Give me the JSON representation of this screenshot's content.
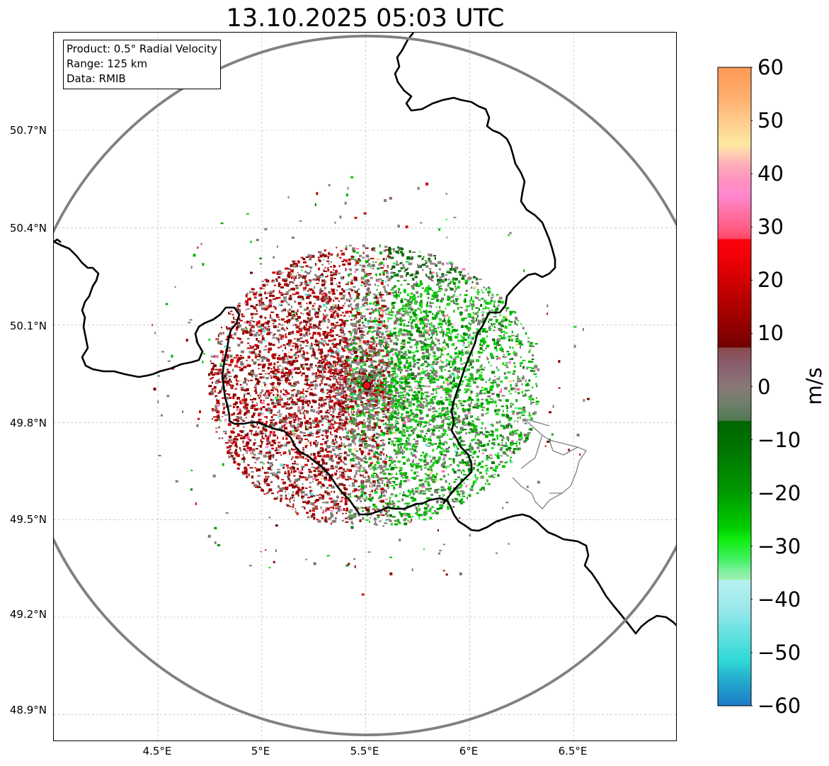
{
  "title": "13.10.2025 05:03 UTC",
  "info": {
    "product": "Product: 0.5° Radial Velocity",
    "range": "Range: 125 km",
    "data": "Data: RMIB"
  },
  "axes": {
    "lat_ticks": [
      "50.7°N",
      "50.4°N",
      "50.1°N",
      "49.8°N",
      "49.5°N",
      "49.2°N",
      "48.9°N"
    ],
    "lon_ticks": [
      "4.5°E",
      "5°E",
      "5.5°E",
      "6°E",
      "6.5°E"
    ]
  },
  "radar": {
    "station_lat": 49.914,
    "station_lon": 5.505,
    "range_km": 125,
    "marker_color": "#e8101a"
  },
  "colorbar": {
    "label": "m/s",
    "ticks": [
      "60",
      "50",
      "40",
      "30",
      "20",
      "10",
      "0",
      "−10",
      "−20",
      "−30",
      "−40",
      "−50",
      "−60"
    ],
    "vmin": -60,
    "vmax": 60
  },
  "colors": {
    "range_ring": "#808080",
    "border": "#000000",
    "grid": "#b0b0b0"
  }
}
